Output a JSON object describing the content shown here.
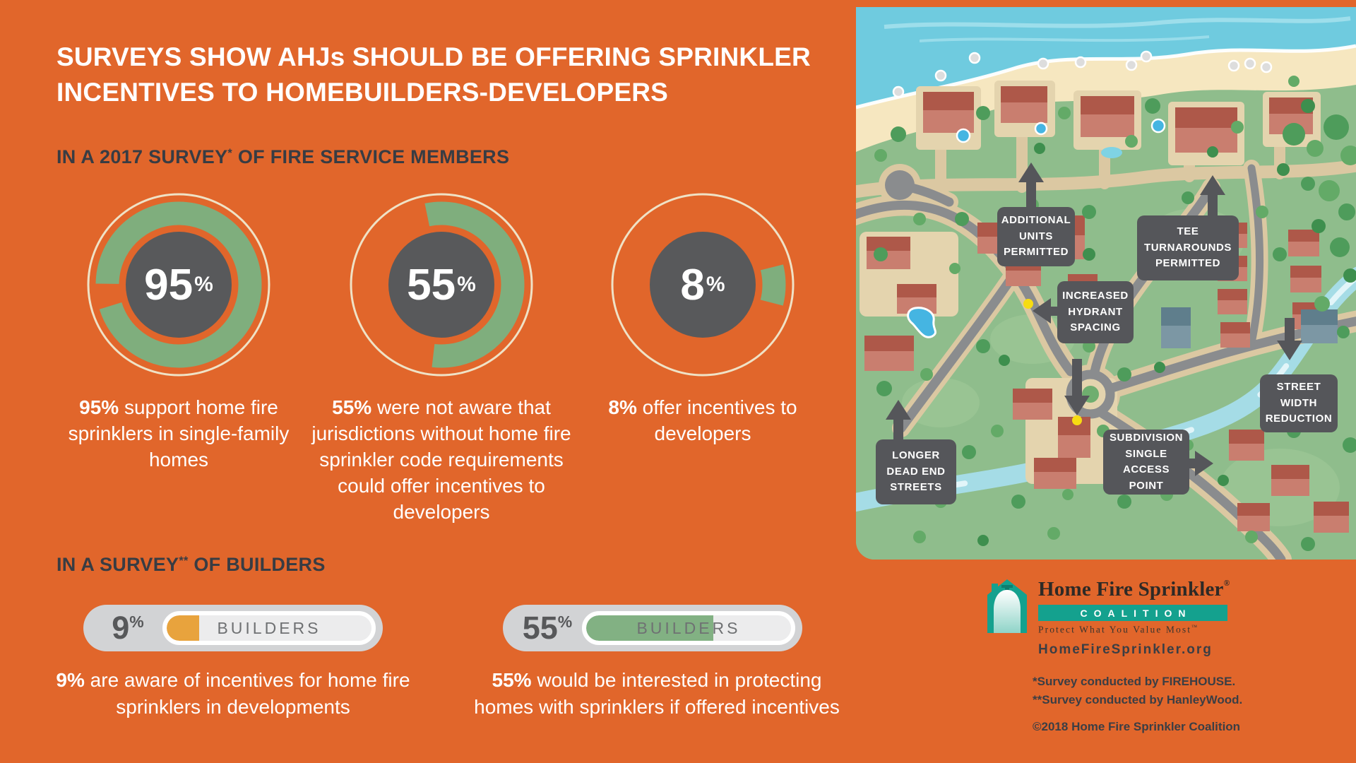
{
  "title": {
    "line1": "SURVEYS SHOW AHJs SHOULD BE OFFERING SPRINKLER",
    "line2": "INCENTIVES TO HOMEBUILDERS-DEVELOPERS"
  },
  "fire_survey": {
    "heading_prefix": "IN A 2017 SURVEY",
    "heading_note": "*",
    "heading_suffix": " OF FIRE SERVICE MEMBERS",
    "donuts": [
      {
        "value": 95,
        "display": "95",
        "unit": "%",
        "caption_bold": "95%",
        "caption_text": " support home fire sprinklers in single-family homes"
      },
      {
        "value": 55,
        "display": "55",
        "unit": "%",
        "caption_bold": "55%",
        "caption_text": " were not aware that jurisdictions without home fire sprinkler code requirements could offer incentives to developers"
      },
      {
        "value": 8,
        "display": "8",
        "unit": "%",
        "caption_bold": "8%",
        "caption_text": " offer incentives to developers"
      }
    ]
  },
  "builder_survey": {
    "heading_prefix": "IN A SURVEY",
    "heading_note": "**",
    "heading_suffix": " OF BUILDERS",
    "bars": [
      {
        "value": 9,
        "display": "9",
        "unit": "%",
        "track_label": "BUILDERS",
        "fill_color": "#E8A33D",
        "caption_bold": "9%",
        "caption_text": " are aware of incentives for home fire sprinklers in developments"
      },
      {
        "value": 55,
        "display": "55",
        "unit": "%",
        "track_label": "BUILDERS",
        "fill_color": "#82B183",
        "caption_bold": "55%",
        "caption_text": " would be interested in protecting homes with sprinklers if offered incentives"
      }
    ]
  },
  "map": {
    "labels": [
      {
        "id": "additional-units",
        "text": "ADDITIONAL\nUNITS\nPERMITTED"
      },
      {
        "id": "tee-turnarounds",
        "text": "TEE\nTURNAROUNDS\nPERMITTED"
      },
      {
        "id": "increased-hydrant",
        "text": "INCREASED\nHYDRANT\nSPACING"
      },
      {
        "id": "longer-dead-end",
        "text": "LONGER\nDEAD END\nSTREETS"
      },
      {
        "id": "subdivision-access",
        "text": "SUBDIVISION\nSINGLE\nACCESS POINT"
      },
      {
        "id": "street-width",
        "text": "STREET\nWIDTH\nREDUCTION"
      }
    ]
  },
  "logo": {
    "name": "Home Fire Sprinkler",
    "registered": "®",
    "banner": "COALITION",
    "tagline": "Protect What You Value Most",
    "tagline_tm": "™",
    "url": "HomeFireSprinkler.org"
  },
  "footnotes": {
    "line1": "*Survey conducted by FIREHOUSE.",
    "line2": "**Survey conducted by HanleyWood.",
    "copyright": "©2018 Home Fire Sprinkler Coalition"
  },
  "colors": {
    "background": "#E1662B",
    "donut_green": "#7FAE7D",
    "ring_cream": "#EFE2C6",
    "circle_gray": "#58595B",
    "amber": "#E8A33D",
    "bar_green": "#82B183"
  },
  "chart_data": [
    {
      "type": "pie",
      "variant": "donut",
      "title": "IN A 2017 SURVEY* OF FIRE SERVICE MEMBERS",
      "unit": "%",
      "series": [
        {
          "label": "support home fire sprinklers in single-family homes",
          "value": 95
        },
        {
          "label": "were not aware that jurisdictions without home fire sprinkler code requirements could offer incentives to developers",
          "value": 55
        },
        {
          "label": "offer incentives to developers",
          "value": 8
        }
      ]
    },
    {
      "type": "bar",
      "title": "IN A SURVEY** OF BUILDERS",
      "unit": "%",
      "categories": [
        "BUILDERS",
        "BUILDERS"
      ],
      "values": [
        9,
        55
      ],
      "labels": [
        "are aware of incentives for home fire sprinklers in developments",
        "would be interested in protecting homes with sprinklers if offered incentives"
      ]
    }
  ]
}
